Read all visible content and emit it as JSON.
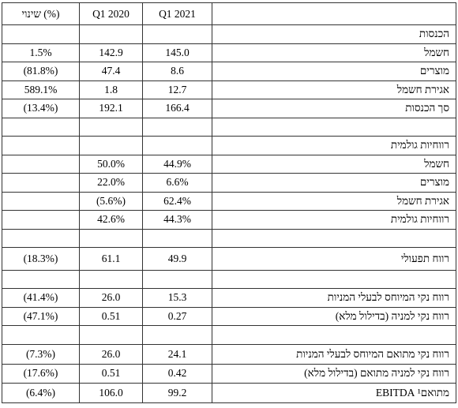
{
  "table": {
    "header": [
      "שינוי (%)",
      "Q1 2020",
      "Q1 2021",
      null
    ],
    "rows": [
      [
        null,
        null,
        null,
        "הכנסות"
      ],
      [
        "1.5%",
        "142.9",
        "145.0",
        "חשמל"
      ],
      [
        "(81.8%)",
        "47.4",
        "8.6",
        "מוצרים"
      ],
      [
        "589.1%",
        "1.8",
        "12.7",
        "אגירת חשמל"
      ],
      [
        "(13.4%)",
        "192.1",
        "166.4",
        "סך הכנסות"
      ],
      [
        null,
        null,
        null,
        null
      ],
      [
        null,
        null,
        null,
        "רווחיות גולמית"
      ],
      [
        null,
        "50.0%",
        "44.9%",
        "חשמל"
      ],
      [
        null,
        "22.0%",
        "6.6%",
        "מוצרים"
      ],
      [
        null,
        "(5.6%)",
        "62.4%",
        "אגירת חשמל"
      ],
      [
        null,
        "42.6%",
        "44.3%",
        "רווחיות גולמית"
      ],
      [
        null,
        null,
        null,
        null
      ],
      [
        "(18.3%)",
        "61.1",
        "49.9",
        "רווח תפעולי"
      ],
      [
        null,
        null,
        null,
        null
      ],
      [
        "(41.4%)",
        "26.0",
        "15.3",
        "רווח נקי המיוחס לבעלי המניות"
      ],
      [
        "(47.1%)",
        "0.51",
        "0.27",
        "רווח נקי למניה (בדילול מלא)"
      ],
      [
        null,
        null,
        null,
        null
      ],
      [
        "(7.3%)",
        "26.0",
        "24.1",
        "רווח נקי מתואם המיוחס לבעלי המניות"
      ],
      [
        "(17.6%)",
        "0.51",
        "0.42",
        "רווח נקי למניה מתואם (בדילול מלא)"
      ],
      [
        "(6.4%)",
        "106.0",
        "99.2",
        "מתואם¹ EBITDA"
      ]
    ]
  }
}
